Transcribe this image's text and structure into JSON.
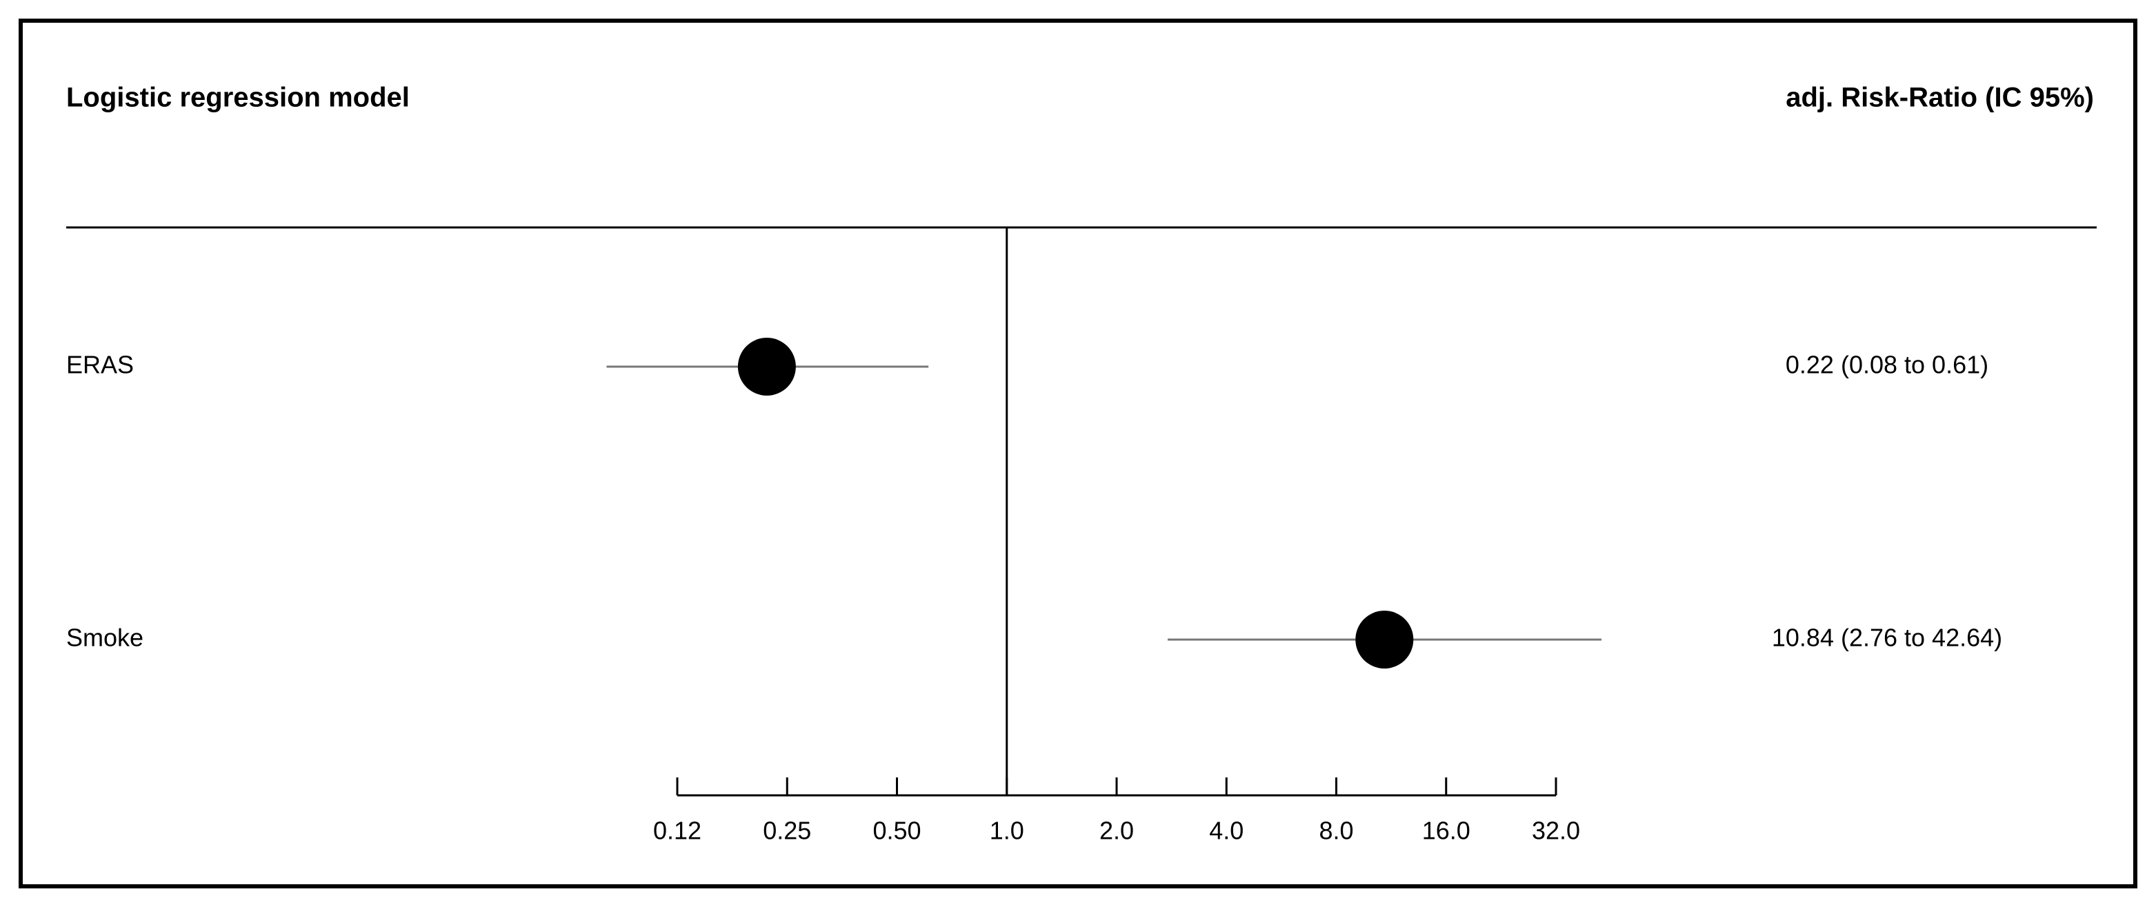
{
  "chart_data": {
    "type": "forest",
    "title": "Logistic regression model",
    "value_header": "adj. Risk-Ratio (IC 95%)",
    "categories": [
      "ERAS",
      "Smoke"
    ],
    "values": [
      0.22,
      10.84
    ],
    "lower": [
      0.08,
      2.76
    ],
    "upper": [
      0.61,
      42.64
    ],
    "value_labels": [
      "0.22 (0.08 to 0.61)",
      "10.84 (2.76 to 42.64)"
    ],
    "color": "#000000",
    "whisker_color": "#777777",
    "xscale": "log",
    "reference_line": 1,
    "xlim": [
      0.125,
      32
    ],
    "xticks": [
      {
        "value": 0.125,
        "label": "0.12"
      },
      0.25,
      {
        "value": 0.5,
        "label": "0.50"
      },
      {
        "value": 1,
        "label": "1.0"
      },
      {
        "value": 2,
        "label": "2.0"
      },
      {
        "value": 4,
        "label": "4.0"
      },
      {
        "value": 8,
        "label": "8.0"
      },
      {
        "value": 16,
        "label": "16.0"
      },
      {
        "value": 32,
        "label": "32.0"
      }
    ]
  }
}
